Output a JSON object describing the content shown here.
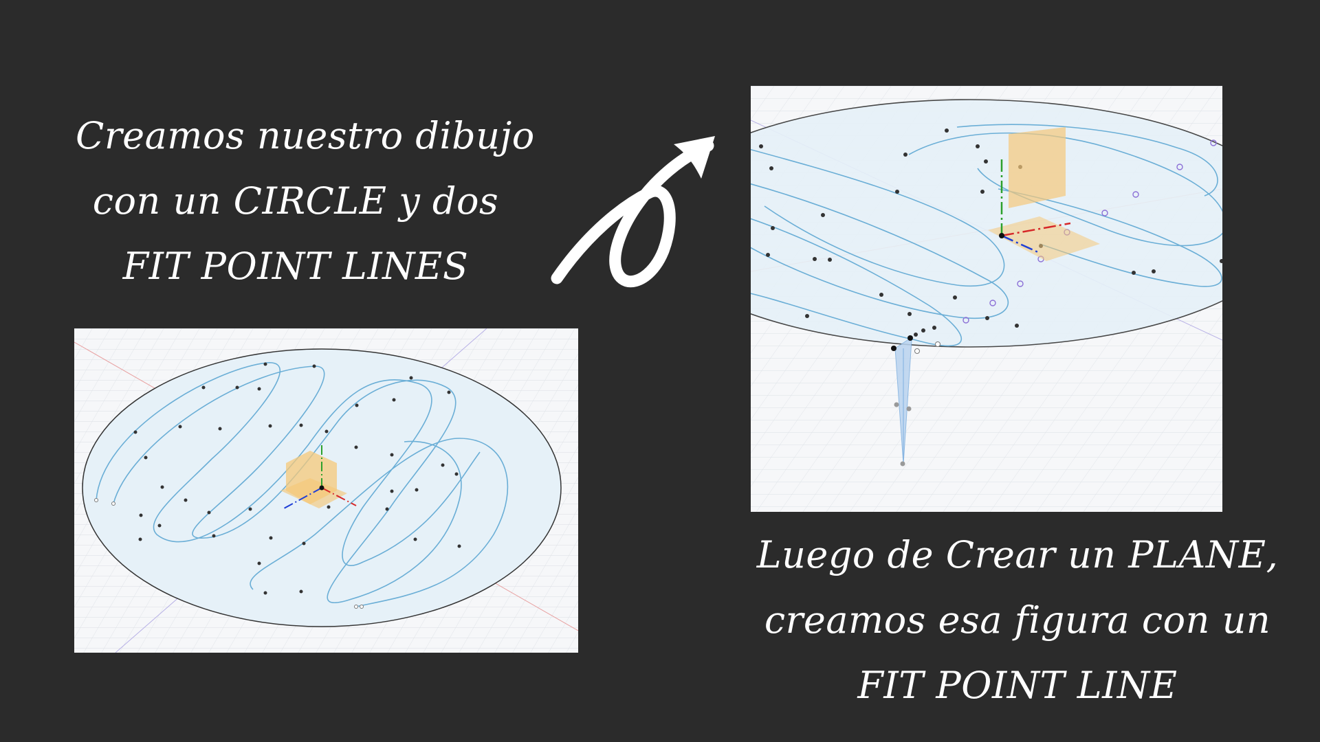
{
  "captions": {
    "top": {
      "line1": "Creamos nuestro dibujo",
      "line2": "con un CIRCLE y dos",
      "line3": "FIT POINT LINES"
    },
    "bottom": {
      "line1": "Luego de Crear un PLANE,",
      "line2": "creamos esa figura con un",
      "line3": "FIT POINT LINE"
    }
  },
  "icons": {
    "arrow": "curved-arrow-icon"
  },
  "colors": {
    "background": "#2b2b2b",
    "text": "#ffffff",
    "grid": "#dde1e6",
    "disc_fill": "#e6f1f8",
    "curve": "#6aaed6",
    "plane_orange": "#f5c87a",
    "axis_x": "#d62728",
    "axis_y": "#2ca02c",
    "axis_z": "#1f3fd6",
    "extrusion": "#b9d3ef"
  }
}
